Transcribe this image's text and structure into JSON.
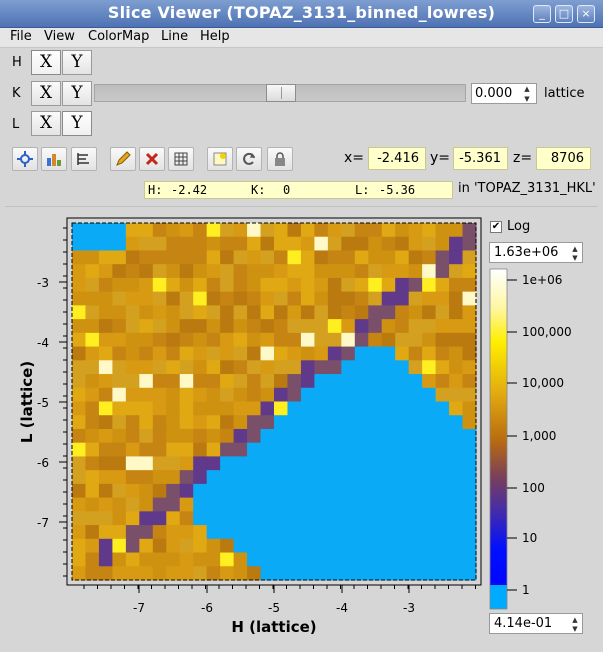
{
  "window": {
    "title": "Slice Viewer (TOPAZ_3131_binned_lowres)",
    "buttons": {
      "minimize": "_",
      "maximize": "□",
      "close": "×"
    }
  },
  "menu": [
    "File",
    "View",
    "ColorMap",
    "Line",
    "Help"
  ],
  "dimensions": [
    {
      "name": "H",
      "x_label": "X",
      "y_label": "Y",
      "selected": "X"
    },
    {
      "name": "K",
      "x_label": "X",
      "y_label": "Y",
      "selected": "none",
      "slider_value": "0.000",
      "units": "lattice"
    },
    {
      "name": "L",
      "x_label": "X",
      "y_label": "Y",
      "selected": "Y"
    }
  ],
  "toolbar": {
    "icons": [
      "zoom-fit-icon",
      "rebin-icon",
      "line-mode-icon",
      "pencil-icon",
      "delete-icon",
      "grid-icon",
      "peaks-icon",
      "refresh-icon",
      "lock-icon"
    ]
  },
  "coords": {
    "x_label": "x=",
    "x_value": "-2.416",
    "y_label": "y=",
    "y_value": "-5.361",
    "z_label": "z=",
    "z_value": "8706",
    "hkl": {
      "h_label": "H:",
      "h_value": "-2.42",
      "k_label": "K:",
      "k_value": "0",
      "l_label": "L:",
      "l_value": "-5.36"
    },
    "workspace_text": "in 'TOPAZ_3131_HKL'"
  },
  "plot": {
    "xlabel": "H (lattice)",
    "ylabel": "L (lattice)",
    "xticks": [
      "-7",
      "-6",
      "-5",
      "-4",
      "-3"
    ],
    "yticks": [
      "-3",
      "-4",
      "-5",
      "-6",
      "-7"
    ]
  },
  "colorbar": {
    "log_label": "Log",
    "log_checked": true,
    "max_value": "1.63e+06",
    "min_value": "4.14e-01",
    "tick_labels": [
      "1e+06",
      "100,000",
      "10,000",
      "1,000",
      "100",
      "10",
      "1"
    ],
    "colors": {
      "top": "#ffffff",
      "yellow": "#ffee00",
      "orange": "#c8820a",
      "purple": "#60398a",
      "blue": "#0000ff",
      "cyan": "#00aaff"
    }
  }
}
